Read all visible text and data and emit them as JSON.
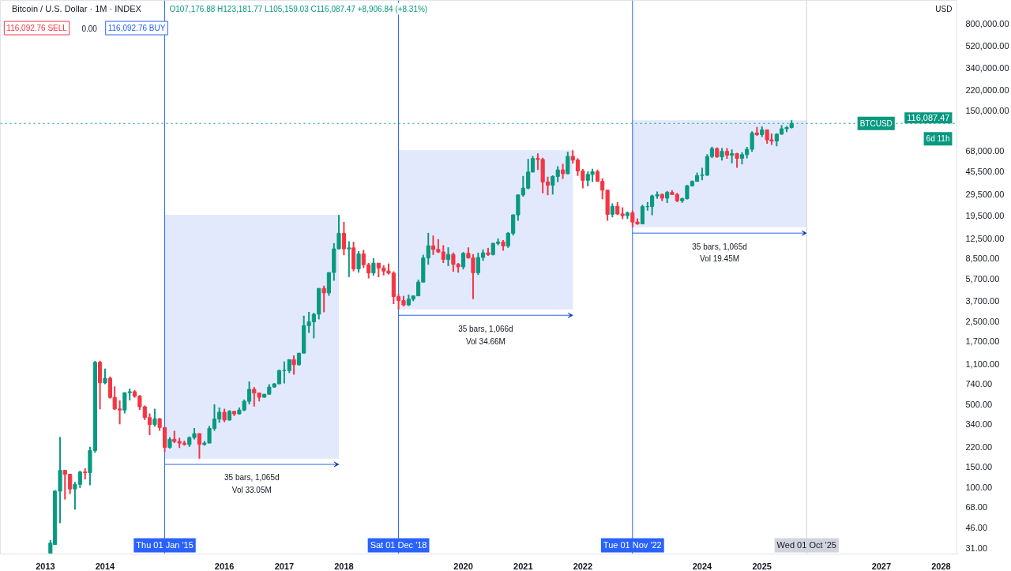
{
  "chart_data": {
    "type": "candlestick",
    "title": "Bitcoin / U.S. Dollar · 1M · INDEX",
    "annotations": [
      "O107,176.88 H123,181.77 L105,159.03 C116,087.47 +8,906.84 (+8.31%)",
      "116,092.76 SELL",
      "0.00",
      "116,092.76 BUY",
      "USD",
      "BTCUSD",
      "6d 11h",
      "35 bars, 1,065d",
      "Vol 33.05M",
      "35 bars, 1,066d",
      "Vol 34.66M",
      "35 bars, 1,065d",
      "Vol 19.45M"
    ],
    "x": [
      "2013-02",
      "2013-03",
      "2013-04",
      "2013-05",
      "2013-06",
      "2013-07",
      "2013-08",
      "2013-09",
      "2013-10",
      "2013-11",
      "2013-12",
      "2014-01",
      "2014-02",
      "2014-03",
      "2014-04",
      "2014-05",
      "2014-06",
      "2014-07",
      "2014-08",
      "2014-09",
      "2014-10",
      "2014-11",
      "2014-12",
      "2015-01",
      "2015-02",
      "2015-03",
      "2015-04",
      "2015-05",
      "2015-06",
      "2015-07",
      "2015-08",
      "2015-09",
      "2015-10",
      "2015-11",
      "2015-12",
      "2016-01",
      "2016-02",
      "2016-03",
      "2016-04",
      "2016-05",
      "2016-06",
      "2016-07",
      "2016-08",
      "2016-09",
      "2016-10",
      "2016-11",
      "2016-12",
      "2017-01",
      "2017-02",
      "2017-03",
      "2017-04",
      "2017-05",
      "2017-06",
      "2017-07",
      "2017-08",
      "2017-09",
      "2017-10",
      "2017-11",
      "2017-12",
      "2018-01",
      "2018-02",
      "2018-03",
      "2018-04",
      "2018-05",
      "2018-06",
      "2018-07",
      "2018-08",
      "2018-09",
      "2018-10",
      "2018-11",
      "2018-12",
      "2019-01",
      "2019-02",
      "2019-03",
      "2019-04",
      "2019-05",
      "2019-06",
      "2019-07",
      "2019-08",
      "2019-09",
      "2019-10",
      "2019-11",
      "2019-12",
      "2020-01",
      "2020-02",
      "2020-03",
      "2020-04",
      "2020-05",
      "2020-06",
      "2020-07",
      "2020-08",
      "2020-09",
      "2020-10",
      "2020-11",
      "2020-12",
      "2021-01",
      "2021-02",
      "2021-03",
      "2021-04",
      "2021-05",
      "2021-06",
      "2021-07",
      "2021-08",
      "2021-09",
      "2021-10",
      "2021-11",
      "2021-12",
      "2022-01",
      "2022-02",
      "2022-03",
      "2022-04",
      "2022-05",
      "2022-06",
      "2022-07",
      "2022-08",
      "2022-09",
      "2022-10",
      "2022-11",
      "2022-12",
      "2023-01",
      "2023-02",
      "2023-03",
      "2023-04",
      "2023-05",
      "2023-06",
      "2023-07",
      "2023-08",
      "2023-09",
      "2023-10",
      "2023-11",
      "2023-12",
      "2024-01",
      "2024-02",
      "2024-03",
      "2024-04",
      "2024-05",
      "2024-06",
      "2024-07",
      "2024-08",
      "2024-09",
      "2024-10",
      "2024-11",
      "2024-12",
      "2025-01",
      "2025-02",
      "2025-03",
      "2025-04",
      "2025-05",
      "2025-06",
      "2025-07"
    ],
    "ohlc": [
      [
        28,
        36,
        28,
        34
      ],
      [
        33,
        95,
        33,
        93
      ],
      [
        93,
        266,
        50,
        139
      ],
      [
        139,
        140,
        79,
        129
      ],
      [
        129,
        130,
        88,
        97
      ],
      [
        97,
        111,
        65,
        106
      ],
      [
        106,
        138,
        99,
        135
      ],
      [
        135,
        145,
        117,
        133
      ],
      [
        133,
        220,
        104,
        204
      ],
      [
        204,
        1163,
        196,
        1130
      ],
      [
        1130,
        1165,
        455,
        760
      ],
      [
        760,
        1000,
        740,
        830
      ],
      [
        830,
        860,
        560,
        573
      ],
      [
        573,
        710,
        450,
        458
      ],
      [
        458,
        540,
        340,
        448
      ],
      [
        448,
        630,
        420,
        628
      ],
      [
        628,
        680,
        540,
        640
      ],
      [
        640,
        660,
        570,
        586
      ],
      [
        586,
        600,
        450,
        478
      ],
      [
        478,
        490,
        370,
        387
      ],
      [
        387,
        420,
        275,
        338
      ],
      [
        338,
        460,
        325,
        378
      ],
      [
        378,
        385,
        300,
        320
      ],
      [
        320,
        320,
        200,
        217
      ],
      [
        217,
        265,
        212,
        254
      ],
      [
        254,
        300,
        236,
        244
      ],
      [
        244,
        262,
        215,
        236
      ],
      [
        236,
        247,
        225,
        230
      ],
      [
        230,
        268,
        220,
        263
      ],
      [
        263,
        316,
        253,
        284
      ],
      [
        284,
        285,
        175,
        230
      ],
      [
        230,
        246,
        225,
        236
      ],
      [
        236,
        330,
        236,
        314
      ],
      [
        314,
        500,
        300,
        377
      ],
      [
        377,
        470,
        350,
        430
      ],
      [
        430,
        460,
        355,
        369
      ],
      [
        369,
        448,
        365,
        437
      ],
      [
        437,
        440,
        400,
        416
      ],
      [
        416,
        470,
        412,
        448
      ],
      [
        448,
        550,
        440,
        531
      ],
      [
        531,
        780,
        500,
        670
      ],
      [
        670,
        700,
        480,
        624
      ],
      [
        624,
        625,
        530,
        574
      ],
      [
        574,
        612,
        570,
        609
      ],
      [
        609,
        740,
        605,
        700
      ],
      [
        700,
        755,
        690,
        745
      ],
      [
        745,
        980,
        740,
        964
      ],
      [
        964,
        1150,
        750,
        965
      ],
      [
        965,
        1200,
        920,
        1190
      ],
      [
        1190,
        1290,
        890,
        1080
      ],
      [
        1080,
        1350,
        1060,
        1350
      ],
      [
        1350,
        2790,
        1350,
        2300
      ],
      [
        2300,
        3000,
        2000,
        2480
      ],
      [
        2480,
        2950,
        1800,
        2870
      ],
      [
        2870,
        4750,
        2600,
        4740
      ],
      [
        4740,
        5000,
        2980,
        4340
      ],
      [
        4340,
        6450,
        4110,
        6450
      ],
      [
        6450,
        11400,
        5500,
        10200
      ],
      [
        10200,
        19700,
        10100,
        13800
      ],
      [
        13800,
        17200,
        9000,
        10200
      ],
      [
        10200,
        11800,
        5900,
        10400
      ],
      [
        10400,
        11700,
        6600,
        6930
      ],
      [
        6930,
        9750,
        6430,
        9250
      ],
      [
        9250,
        10000,
        7030,
        7500
      ],
      [
        7500,
        7760,
        5750,
        6390
      ],
      [
        6390,
        8500,
        6070,
        7730
      ],
      [
        7730,
        7760,
        5880,
        7030
      ],
      [
        7030,
        7400,
        6100,
        6630
      ],
      [
        6630,
        7680,
        6200,
        6370
      ],
      [
        6370,
        6600,
        3500,
        4040
      ],
      [
        4040,
        4250,
        3150,
        3740
      ],
      [
        3740,
        4100,
        3350,
        3440
      ],
      [
        3440,
        4200,
        3370,
        3850
      ],
      [
        3850,
        4140,
        3700,
        4100
      ],
      [
        4100,
        5600,
        4090,
        5350
      ],
      [
        5350,
        9100,
        5350,
        8560
      ],
      [
        8560,
        13900,
        7500,
        10820
      ],
      [
        10820,
        13200,
        9070,
        10080
      ],
      [
        10080,
        12300,
        9400,
        9600
      ],
      [
        9600,
        10950,
        7750,
        8300
      ],
      [
        8300,
        10500,
        7300,
        9150
      ],
      [
        9150,
        9500,
        6530,
        7550
      ],
      [
        7550,
        7750,
        6430,
        7200
      ],
      [
        7200,
        9600,
        6850,
        9350
      ],
      [
        9350,
        10500,
        8450,
        8550
      ],
      [
        8550,
        9200,
        3850,
        6420
      ],
      [
        6420,
        9470,
        6150,
        8630
      ],
      [
        8630,
        10080,
        8100,
        9450
      ],
      [
        9450,
        10400,
        8900,
        9140
      ],
      [
        9140,
        11450,
        8980,
        11350
      ],
      [
        11350,
        12480,
        10950,
        11650
      ],
      [
        11650,
        12100,
        9850,
        10780
      ],
      [
        10780,
        14100,
        10400,
        13800
      ],
      [
        13800,
        19900,
        13200,
        19700
      ],
      [
        19700,
        29300,
        17600,
        28990
      ],
      [
        28990,
        41950,
        28100,
        33100
      ],
      [
        33100,
        58350,
        32300,
        45200
      ],
      [
        45200,
        61800,
        45000,
        58800
      ],
      [
        58800,
        64850,
        47000,
        57700
      ],
      [
        57700,
        59600,
        30000,
        37300
      ],
      [
        37300,
        41300,
        28800,
        35000
      ],
      [
        35000,
        42400,
        29300,
        41500
      ],
      [
        41500,
        50500,
        37300,
        47100
      ],
      [
        47100,
        52900,
        39600,
        43800
      ],
      [
        43800,
        67000,
        43300,
        61300
      ],
      [
        61300,
        69000,
        53300,
        57000
      ],
      [
        57000,
        59100,
        42000,
        46200
      ],
      [
        46200,
        47900,
        32900,
        38500
      ],
      [
        38500,
        45800,
        34300,
        43200
      ],
      [
        43200,
        48200,
        37200,
        45500
      ],
      [
        45500,
        47400,
        37700,
        37700
      ],
      [
        37700,
        40000,
        26700,
        31800
      ],
      [
        31800,
        31900,
        17600,
        19900
      ],
      [
        19900,
        24650,
        18800,
        23300
      ],
      [
        23300,
        25200,
        19600,
        20050
      ],
      [
        20050,
        22800,
        18150,
        19430
      ],
      [
        19430,
        21000,
        18200,
        20490
      ],
      [
        20490,
        21450,
        15500,
        17160
      ],
      [
        17160,
        18400,
        16300,
        16550
      ],
      [
        16550,
        23950,
        16500,
        23130
      ],
      [
        23130,
        25250,
        21400,
        23150
      ],
      [
        23150,
        29200,
        19550,
        28470
      ],
      [
        28470,
        30950,
        26950,
        29250
      ],
      [
        29250,
        29820,
        25800,
        27220
      ],
      [
        27220,
        31400,
        24800,
        30470
      ],
      [
        30470,
        31800,
        28900,
        29230
      ],
      [
        29230,
        30200,
        25200,
        25940
      ],
      [
        25940,
        27500,
        24900,
        26960
      ],
      [
        26960,
        35200,
        26550,
        34650
      ],
      [
        34650,
        38400,
        34100,
        37720
      ],
      [
        37720,
        44700,
        37600,
        42280
      ],
      [
        42280,
        49000,
        38550,
        42580
      ],
      [
        42580,
        64000,
        41900,
        61130
      ],
      [
        61130,
        73800,
        59100,
        71280
      ],
      [
        71280,
        72800,
        59600,
        60640
      ],
      [
        60640,
        71950,
        56550,
        67490
      ],
      [
        67490,
        71950,
        58400,
        62670
      ],
      [
        62670,
        70000,
        53500,
        64620
      ],
      [
        64620,
        65600,
        49100,
        58970
      ],
      [
        58970,
        66500,
        52600,
        63330
      ],
      [
        63330,
        73600,
        58900,
        70290
      ],
      [
        70290,
        99600,
        66800,
        96450
      ],
      [
        96450,
        108300,
        91300,
        93430
      ],
      [
        93430,
        109600,
        89200,
        102410
      ],
      [
        102410,
        102500,
        78200,
        84350
      ],
      [
        84350,
        95000,
        76600,
        82550
      ],
      [
        82550,
        95800,
        74400,
        94200
      ],
      [
        94200,
        112000,
        93400,
        104640
      ],
      [
        104640,
        110600,
        98200,
        107170
      ],
      [
        107176.88,
        123181.77,
        105159.03,
        116087.47
      ]
    ],
    "log": true,
    "xlim": [
      "2012-04-01",
      "2028-04-07"
    ],
    "ylim": [
      27.5,
      1260000
    ],
    "xticks": [
      {
        "value": "2013-01-01",
        "label": "2013"
      },
      {
        "value": "2014-01-01",
        "label": "2014"
      },
      {
        "value": "2016-01-01",
        "label": "2016"
      },
      {
        "value": "2017-01-01",
        "label": "2017"
      },
      {
        "value": "2018-01-01",
        "label": "2018"
      },
      {
        "value": "2020-01-01",
        "label": "2020"
      },
      {
        "value": "2021-01-01",
        "label": "2021"
      },
      {
        "value": "2022-01-01",
        "label": "2022"
      },
      {
        "value": "2024-01-01",
        "label": "2024"
      },
      {
        "value": "2025-01-01",
        "label": "2025"
      },
      {
        "value": "2027-01-01",
        "label": "2027"
      },
      {
        "value": "2028-01-01",
        "label": "2028"
      }
    ],
    "yticks": [
      {
        "value": 31,
        "label": "31.00"
      },
      {
        "value": 46,
        "label": "46.00"
      },
      {
        "value": 68,
        "label": "68.00"
      },
      {
        "value": 100,
        "label": "100.00"
      },
      {
        "value": 150,
        "label": "150.00"
      },
      {
        "value": 220,
        "label": "220.00"
      },
      {
        "value": 340,
        "label": "340.00"
      },
      {
        "value": 500,
        "label": "500.00"
      },
      {
        "value": 740,
        "label": "740.00"
      },
      {
        "value": 1100,
        "label": "1,100.00"
      },
      {
        "value": 1700,
        "label": "1,700.00"
      },
      {
        "value": 2500,
        "label": "2,500.00"
      },
      {
        "value": 3700,
        "label": "3,700.00"
      },
      {
        "value": 5700,
        "label": "5,700.00"
      },
      {
        "value": 8500,
        "label": "8,500.00"
      },
      {
        "value": 12500,
        "label": "12,500.00"
      },
      {
        "value": 19500,
        "label": "19,500.00"
      },
      {
        "value": 29500,
        "label": "29,500.00"
      },
      {
        "value": 45500,
        "label": "45,500.00"
      },
      {
        "value": 68000,
        "label": "68,000.00"
      },
      {
        "value": 150000,
        "label": "150,000.00"
      },
      {
        "value": 220000,
        "label": "220,000.00"
      },
      {
        "value": 340000,
        "label": "340,000.00"
      },
      {
        "value": 520000,
        "label": "520,000.00"
      },
      {
        "value": 800000,
        "label": "800,000.00"
      }
    ],
    "ref_lines": [
      {
        "axis": "x",
        "value": "2015-01-01",
        "label": "Thu 01 Jan '15",
        "color": "#2962ff"
      },
      {
        "axis": "x",
        "value": "2018-12-01",
        "label": "Sat 01 Dec '18",
        "color": "#2962ff"
      },
      {
        "axis": "x",
        "value": "2022-11-01",
        "label": "Tue 01 Nov '22",
        "color": "#2962ff"
      },
      {
        "axis": "x",
        "value": "2025-10-01",
        "label": "Wed 01 Oct '25",
        "color": "#d1d4dc"
      },
      {
        "axis": "y",
        "value": 116087.47,
        "label": "116,087.47",
        "color": "#089981",
        "line_style": "dotted"
      }
    ],
    "bands": [
      {
        "axis": "x",
        "from": "2015-01-01",
        "to": "2017-12-01",
        "color": "#dbe3fb"
      },
      {
        "axis": "x",
        "from": "2018-12-01",
        "to": "2021-11-01",
        "color": "#dbe3fb"
      },
      {
        "axis": "x",
        "from": "2022-11-01",
        "to": "2025-10-01",
        "color": "#dbe3fb"
      }
    ],
    "grid": false
  }
}
